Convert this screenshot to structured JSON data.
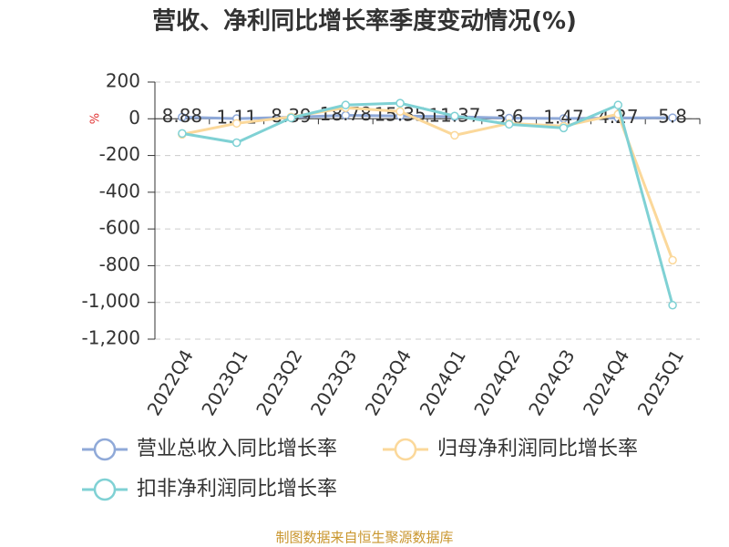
{
  "chart_data": {
    "type": "line",
    "title": "营收、净利同比增长率季度变动情况(%)",
    "y_label": "%",
    "categories": [
      "2022Q4",
      "2023Q1",
      "2023Q2",
      "2023Q3",
      "2023Q4",
      "2024Q1",
      "2024Q2",
      "2024Q3",
      "2024Q4",
      "2025Q1"
    ],
    "series": [
      {
        "name": "营业总收入同比增长率",
        "color": "#8fa9d8",
        "values": [
          8.88,
          1.11,
          8.39,
          18.78,
          15.35,
          11.37,
          3.6,
          1.47,
          4.27,
          5.8
        ],
        "show_labels": true
      },
      {
        "name": "归母净利润同比增长率",
        "color": "#fbd89a",
        "values": [
          -85,
          -25,
          10,
          60,
          40,
          -90,
          -25,
          -40,
          25,
          -770
        ]
      },
      {
        "name": "扣非净利润同比增长率",
        "color": "#7fd1d4",
        "values": [
          -80,
          -130,
          5,
          75,
          85,
          15,
          -30,
          -50,
          75,
          -1015
        ]
      }
    ],
    "ylim": [
      -1200,
      200
    ],
    "yticks": [
      200,
      0,
      -200,
      -400,
      -600,
      -800,
      {
        "value": -1000,
        "label": "-1,000"
      },
      {
        "value": -1200,
        "label": "-1,200"
      }
    ],
    "grid": true,
    "source": "制图数据来自恒生聚源数据库"
  }
}
